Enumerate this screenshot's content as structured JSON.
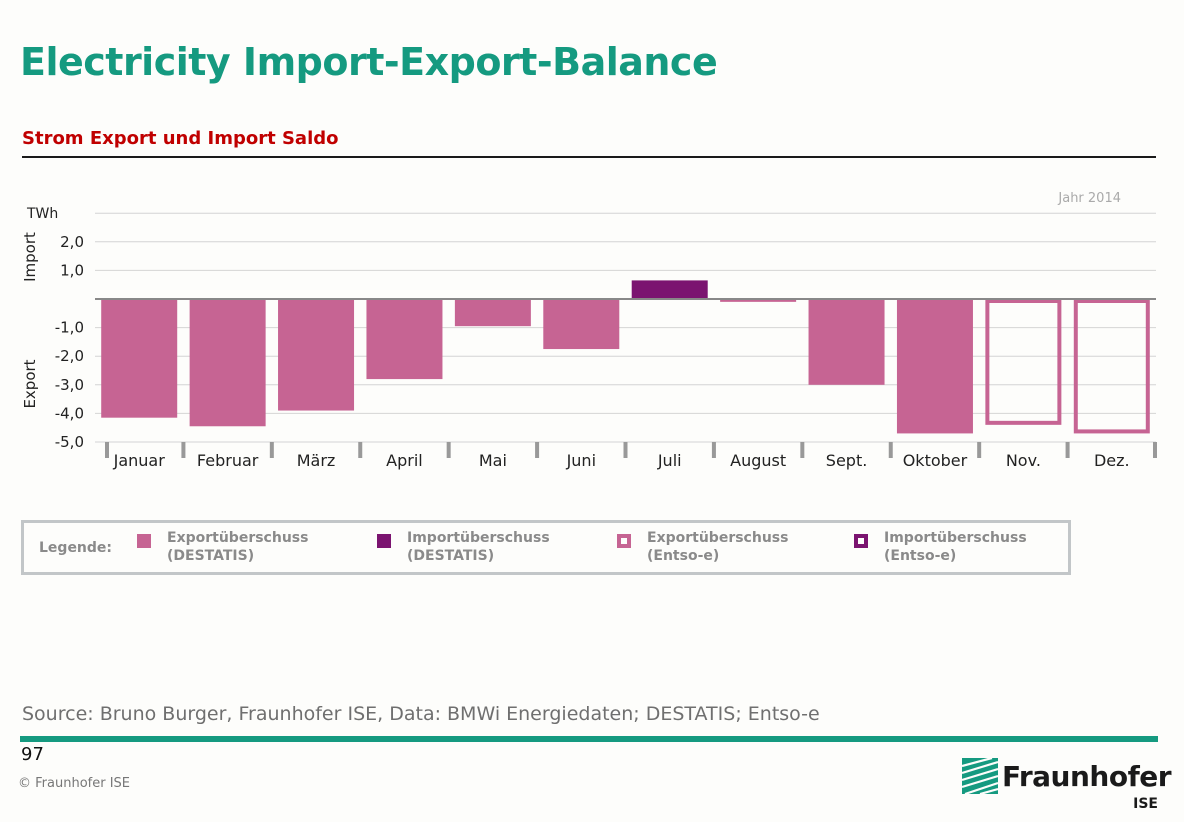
{
  "page": {
    "title": "Electricity Import-Export-Balance",
    "source": "Source: Bruno Burger, Fraunhofer ISE, Data: BMWi Energiedaten; DESTATIS; Entso-e",
    "page_number": "97",
    "copyright": "© Fraunhofer ISE",
    "logo_text": "Fraunhofer",
    "logo_sub": "ISE"
  },
  "chart_data": {
    "type": "bar",
    "title": "Strom Export und Import Saldo",
    "year_label": "Jahr 2014",
    "unit_label": "TWh",
    "ylabel_top": "Import",
    "ylabel_bottom": "Export",
    "ylim": [
      -5,
      3
    ],
    "yticks": [
      2,
      1,
      -1,
      -2,
      -3,
      -4,
      -5
    ],
    "ytick_labels": [
      "2,0",
      "1,0",
      "-1,0",
      "-2,0",
      "-3,0",
      "-4,0",
      "-5,0"
    ],
    "grid": true,
    "categories": [
      "Januar",
      "Februar",
      "März",
      "April",
      "Mai",
      "Juni",
      "Juli",
      "August",
      "Sept.",
      "Oktober",
      "Nov.",
      "Dez."
    ],
    "values": [
      -4.15,
      -4.45,
      -3.9,
      -2.8,
      -0.95,
      -1.75,
      0.65,
      -0.1,
      -3.0,
      -4.7,
      -4.4,
      -4.7
    ],
    "series_type": [
      "export_destatis",
      "export_destatis",
      "export_destatis",
      "export_destatis",
      "export_destatis",
      "export_destatis",
      "import_destatis",
      "export_destatis",
      "export_destatis",
      "export_destatis",
      "export_entsoe",
      "export_entsoe"
    ],
    "legend": {
      "label": "Legende:",
      "items": [
        {
          "key": "export_destatis",
          "line1": "Exportüberschuss",
          "line2": "(DESTATIS)",
          "style": "filled",
          "color": "#c66493"
        },
        {
          "key": "import_destatis",
          "line1": "Importüberschuss",
          "line2": "(DESTATIS)",
          "style": "filled",
          "color": "#7b1470"
        },
        {
          "key": "export_entsoe",
          "line1": "Exportüberschuss",
          "line2": "(Entso-e)",
          "style": "outline",
          "color": "#c66493"
        },
        {
          "key": "import_entsoe",
          "line1": "Importüberschuss",
          "line2": "(Entso-e)",
          "style": "outline",
          "color": "#7b1470"
        }
      ]
    }
  }
}
